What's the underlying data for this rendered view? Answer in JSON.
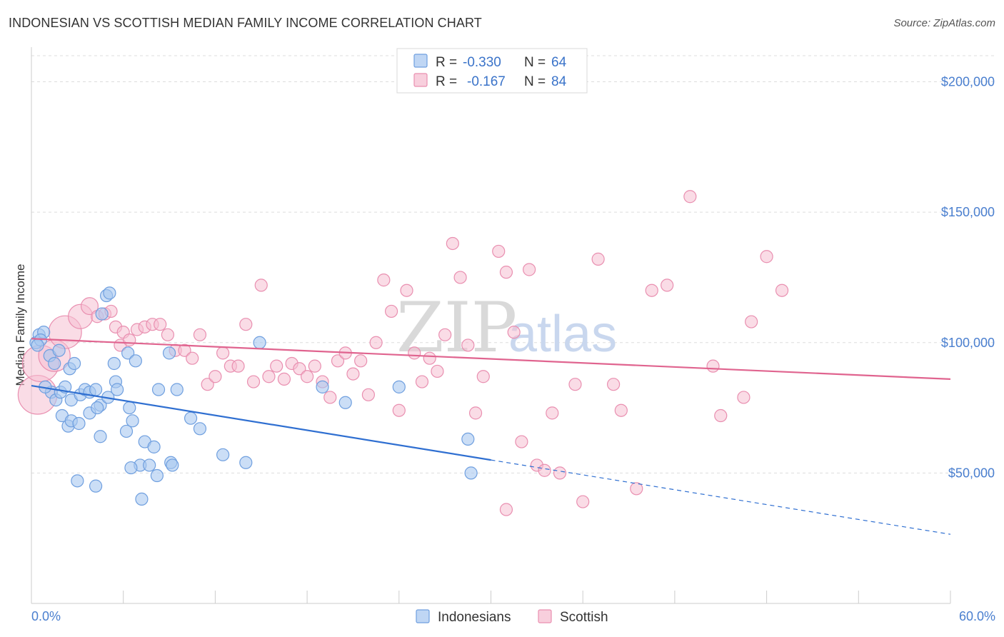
{
  "header": {
    "title": "INDONESIAN VS SCOTTISH MEDIAN FAMILY INCOME CORRELATION CHART",
    "source": "Source: ZipAtlas.com"
  },
  "watermark": {
    "zip": "ZIP",
    "atlas": "atlas"
  },
  "colors": {
    "indonesian_fill": "#a9c8f0",
    "indonesian_stroke": "#6f9fdf",
    "indonesian_line": "#2f6fd1",
    "scottish_fill": "#f6bfd1",
    "scottish_stroke": "#e98fb0",
    "scottish_line": "#e0648f",
    "grid": "#dddddd",
    "axis_tick_text": "#4a7fcf"
  },
  "chart_data": {
    "type": "scatter",
    "title": "INDONESIAN VS SCOTTISH MEDIAN FAMILY INCOME CORRELATION CHART",
    "xlabel": "",
    "ylabel": "Median Family Income",
    "xlim": [
      0,
      60
    ],
    "ylim": [
      0,
      210000
    ],
    "x_tick_labels": [
      "0.0%",
      "60.0%"
    ],
    "y_ticks": [
      50000,
      100000,
      150000,
      200000
    ],
    "y_tick_labels": [
      "$50,000",
      "$100,000",
      "$150,000",
      "$200,000"
    ],
    "grid": "horizontal dashed",
    "legend_top": [
      {
        "series": "Indonesians",
        "r_label": "R =",
        "r_value": "-0.330",
        "n_label": "N =",
        "n_value": "64"
      },
      {
        "series": "Scottish",
        "r_label": "R =",
        "r_value": "-0.167",
        "n_label": "N =",
        "n_value": "84"
      }
    ],
    "series": [
      {
        "name": "Indonesians",
        "trend": {
          "x0": 0,
          "y0": 83500,
          "x1": 30,
          "y1": 55000,
          "dash_to_x": 60,
          "dash_to_y": 26500
        },
        "points": [
          [
            0.3,
            100000,
            1
          ],
          [
            0.5,
            103000,
            1
          ],
          [
            0.8,
            104000,
            1
          ],
          [
            0.6,
            101000,
            1
          ],
          [
            0.4,
            99000,
            1
          ],
          [
            1.2,
            95000,
            1
          ],
          [
            1.5,
            92000,
            1
          ],
          [
            1.8,
            97000,
            1
          ],
          [
            2.5,
            90000,
            1
          ],
          [
            4.6,
            111000,
            1
          ],
          [
            4.9,
            118000,
            1
          ],
          [
            5.1,
            119000,
            1
          ],
          [
            1.3,
            81000,
            1
          ],
          [
            1.6,
            78000,
            1
          ],
          [
            1.9,
            81000,
            1
          ],
          [
            2.2,
            83000,
            1
          ],
          [
            2.6,
            78000,
            1
          ],
          [
            3.2,
            80000,
            1
          ],
          [
            3.5,
            82000,
            1
          ],
          [
            3.8,
            81000,
            1
          ],
          [
            4.2,
            82000,
            1
          ],
          [
            4.5,
            76000,
            1
          ],
          [
            5.0,
            79000,
            1
          ],
          [
            5.5,
            85000,
            1
          ],
          [
            5.6,
            82000,
            1
          ],
          [
            2.0,
            72000,
            1
          ],
          [
            2.4,
            68000,
            1
          ],
          [
            2.6,
            70000,
            1
          ],
          [
            3.1,
            69000,
            1
          ],
          [
            3.8,
            73000,
            1
          ],
          [
            4.3,
            75000,
            1
          ],
          [
            6.2,
            66000,
            1
          ],
          [
            6.6,
            70000,
            1
          ],
          [
            6.3,
            96000,
            1
          ],
          [
            6.8,
            93000,
            1
          ],
          [
            5.4,
            92000,
            1
          ],
          [
            9.0,
            96000,
            1
          ],
          [
            6.4,
            75000,
            1
          ],
          [
            8.3,
            82000,
            1
          ],
          [
            9.5,
            82000,
            1
          ],
          [
            10.4,
            71000,
            1
          ],
          [
            11.0,
            67000,
            1
          ],
          [
            4.5,
            64000,
            1
          ],
          [
            7.4,
            62000,
            1
          ],
          [
            8.0,
            60000,
            1
          ],
          [
            7.1,
            53000,
            1
          ],
          [
            6.5,
            52000,
            1
          ],
          [
            7.7,
            53000,
            1
          ],
          [
            9.1,
            54000,
            1
          ],
          [
            9.2,
            53000,
            1
          ],
          [
            8.2,
            49000,
            1
          ],
          [
            3.0,
            47000,
            1
          ],
          [
            4.2,
            45000,
            1
          ],
          [
            7.2,
            40000,
            1
          ],
          [
            12.5,
            57000,
            1
          ],
          [
            14.0,
            54000,
            1
          ],
          [
            14.9,
            100000,
            1
          ],
          [
            19.0,
            83000,
            1
          ],
          [
            20.5,
            77000,
            1
          ],
          [
            24.0,
            83000,
            1
          ],
          [
            28.5,
            63000,
            1
          ],
          [
            28.7,
            50000,
            1
          ],
          [
            2.8,
            92000,
            1
          ],
          [
            0.9,
            83000,
            1
          ]
        ]
      },
      {
        "name": "Scottish",
        "trend": {
          "x0": 0,
          "y0": 101500,
          "x1": 60,
          "y1": 86000
        },
        "points": [
          [
            0.4,
            80000,
            3.2
          ],
          [
            0.6,
            92000,
            3.0
          ],
          [
            1.5,
            95000,
            2.6
          ],
          [
            2.2,
            104000,
            2.7
          ],
          [
            3.2,
            110000,
            2.0
          ],
          [
            3.8,
            114000,
            1.4
          ],
          [
            4.3,
            110000,
            1
          ],
          [
            4.8,
            111000,
            1
          ],
          [
            5.2,
            112000,
            1
          ],
          [
            5.5,
            106000,
            1
          ],
          [
            5.8,
            99000,
            1
          ],
          [
            6.0,
            104000,
            1
          ],
          [
            6.4,
            101000,
            1
          ],
          [
            6.9,
            105000,
            1
          ],
          [
            7.4,
            106000,
            1
          ],
          [
            7.9,
            107000,
            1
          ],
          [
            8.4,
            107000,
            1
          ],
          [
            8.9,
            103000,
            1
          ],
          [
            9.4,
            97000,
            1
          ],
          [
            10.0,
            97000,
            1
          ],
          [
            10.5,
            94000,
            1
          ],
          [
            11.0,
            103000,
            1
          ],
          [
            11.5,
            84000,
            1
          ],
          [
            12.0,
            87000,
            1
          ],
          [
            12.5,
            96000,
            1
          ],
          [
            13.0,
            91000,
            1
          ],
          [
            13.5,
            91000,
            1
          ],
          [
            14.0,
            107000,
            1
          ],
          [
            14.5,
            85000,
            1
          ],
          [
            15.0,
            122000,
            1
          ],
          [
            15.5,
            87000,
            1
          ],
          [
            16.0,
            91000,
            1
          ],
          [
            16.5,
            86000,
            1
          ],
          [
            17.0,
            92000,
            1
          ],
          [
            17.5,
            90000,
            1
          ],
          [
            18.0,
            87000,
            1
          ],
          [
            18.5,
            91000,
            1
          ],
          [
            19.0,
            85000,
            1
          ],
          [
            19.5,
            79000,
            1
          ],
          [
            20.0,
            93000,
            1
          ],
          [
            20.5,
            96000,
            1
          ],
          [
            21.0,
            88000,
            1
          ],
          [
            21.5,
            93000,
            1
          ],
          [
            22.0,
            80000,
            1
          ],
          [
            22.5,
            100000,
            1
          ],
          [
            23.0,
            124000,
            1
          ],
          [
            23.5,
            112000,
            1
          ],
          [
            24.0,
            74000,
            1
          ],
          [
            24.5,
            120000,
            1
          ],
          [
            25.0,
            96000,
            1
          ],
          [
            25.5,
            85000,
            1
          ],
          [
            26.0,
            94000,
            1
          ],
          [
            26.5,
            89000,
            1
          ],
          [
            27.0,
            103000,
            1
          ],
          [
            27.5,
            138000,
            1
          ],
          [
            28.0,
            125000,
            1
          ],
          [
            28.5,
            99000,
            1
          ],
          [
            29.0,
            73000,
            1
          ],
          [
            29.5,
            87000,
            1
          ],
          [
            30.5,
            135000,
            1
          ],
          [
            31.0,
            127000,
            1
          ],
          [
            31.5,
            104000,
            1
          ],
          [
            32.0,
            62000,
            1
          ],
          [
            32.5,
            128000,
            1
          ],
          [
            33.0,
            53000,
            1
          ],
          [
            33.5,
            51000,
            1
          ],
          [
            34.0,
            73000,
            1
          ],
          [
            34.5,
            50000,
            1
          ],
          [
            35.5,
            84000,
            1
          ],
          [
            36.0,
            39000,
            1
          ],
          [
            37.0,
            132000,
            1
          ],
          [
            38.0,
            84000,
            1
          ],
          [
            38.5,
            74000,
            1
          ],
          [
            39.5,
            44000,
            1
          ],
          [
            40.5,
            120000,
            1
          ],
          [
            41.5,
            122000,
            1
          ],
          [
            43.0,
            156000,
            1
          ],
          [
            44.5,
            91000,
            1
          ],
          [
            45.0,
            72000,
            1
          ],
          [
            46.5,
            79000,
            1
          ],
          [
            47.0,
            108000,
            1
          ],
          [
            48.0,
            133000,
            1
          ],
          [
            49.0,
            120000,
            1
          ],
          [
            31.0,
            36000,
            1
          ]
        ]
      }
    ]
  },
  "bottom_legend": {
    "indonesians": "Indonesians",
    "scottish": "Scottish"
  }
}
